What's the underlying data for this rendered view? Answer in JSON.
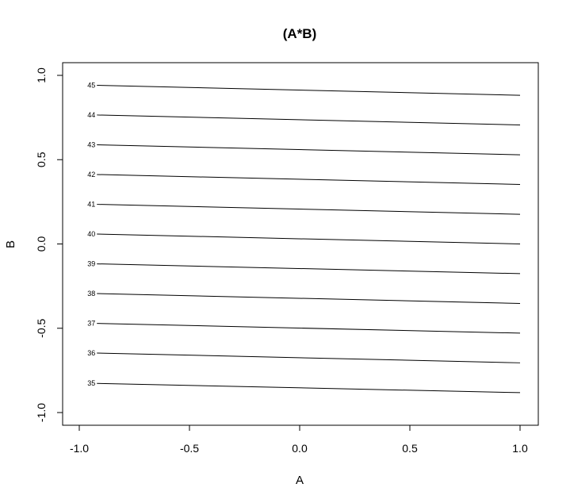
{
  "chart_data": {
    "type": "line",
    "title": "(A*B)",
    "xlabel": "A",
    "ylabel": "B",
    "xlim": [
      -1.0,
      1.0
    ],
    "ylim": [
      -1.0,
      1.0
    ],
    "x_ticks": [
      "-1.0",
      "-0.5",
      "0.0",
      "0.5",
      "1.0"
    ],
    "y_ticks": [
      "-1.0",
      "-0.5",
      "0.0",
      "0.5",
      "1.0"
    ],
    "grid": false,
    "legend": "none",
    "contours": [
      {
        "level": "35",
        "x": [
          -0.92,
          1.0
        ],
        "y": [
          -0.827,
          -0.882
        ]
      },
      {
        "level": "36",
        "x": [
          -0.92,
          1.0
        ],
        "y": [
          -0.647,
          -0.705
        ]
      },
      {
        "level": "37",
        "x": [
          -0.92,
          1.0
        ],
        "y": [
          -0.471,
          -0.529
        ]
      },
      {
        "level": "38",
        "x": [
          -0.92,
          1.0
        ],
        "y": [
          -0.294,
          -0.353
        ]
      },
      {
        "level": "39",
        "x": [
          -0.92,
          1.0
        ],
        "y": [
          -0.118,
          -0.176
        ]
      },
      {
        "level": "40",
        "x": [
          -0.92,
          1.0
        ],
        "y": [
          0.059,
          0.0
        ]
      },
      {
        "level": "41",
        "x": [
          -0.92,
          1.0
        ],
        "y": [
          0.235,
          0.176
        ]
      },
      {
        "level": "42",
        "x": [
          -0.92,
          1.0
        ],
        "y": [
          0.412,
          0.353
        ]
      },
      {
        "level": "43",
        "x": [
          -0.92,
          1.0
        ],
        "y": [
          0.588,
          0.529
        ]
      },
      {
        "level": "44",
        "x": [
          -0.92,
          1.0
        ],
        "y": [
          0.765,
          0.706
        ]
      },
      {
        "level": "45",
        "x": [
          -0.92,
          1.0
        ],
        "y": [
          0.941,
          0.882
        ]
      }
    ]
  }
}
